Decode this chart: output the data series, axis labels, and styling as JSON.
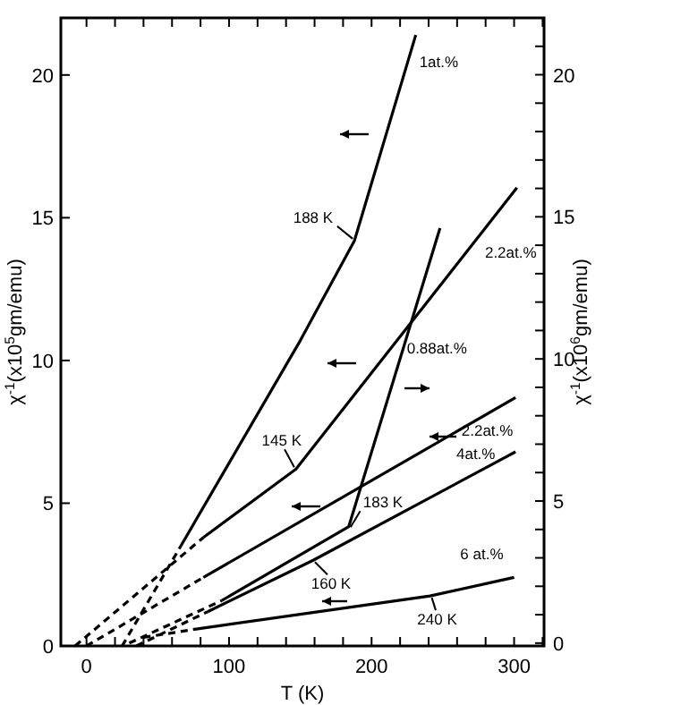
{
  "chart_data": {
    "type": "line",
    "xlabel": "T (K)",
    "ylabel": "χ$^{-1}$(x10$^{5}$gm/emu)",
    "y2label": "χ$^{-1}$(x10$^{6}$gm/emu)",
    "xlim": [
      -18,
      321
    ],
    "ylim": [
      0,
      22
    ],
    "y2lim": [
      -0.1,
      22
    ],
    "xticks": [
      0,
      {
        "value": 20,
        "label": null
      },
      {
        "value": 40,
        "label": null
      },
      {
        "value": 60,
        "label": null
      },
      {
        "value": 80,
        "label": null
      },
      100,
      {
        "value": 120,
        "label": null
      },
      {
        "value": 140,
        "label": null
      },
      {
        "value": 160,
        "label": null
      },
      {
        "value": 180,
        "label": null
      },
      200,
      {
        "value": 220,
        "label": null
      },
      {
        "value": 240,
        "label": null
      },
      {
        "value": 260,
        "label": null
      },
      {
        "value": 280,
        "label": null
      },
      300,
      {
        "value": 320,
        "label": null
      }
    ],
    "yticks": [
      0,
      5,
      10,
      15,
      20
    ],
    "y2ticks": [
      0,
      {
        "value": 1,
        "label": null
      },
      {
        "value": 2,
        "label": null
      },
      {
        "value": 3,
        "label": null
      },
      {
        "value": 4,
        "label": null
      },
      5,
      {
        "value": 6,
        "label": null
      },
      {
        "value": 7,
        "label": null
      },
      {
        "value": 8,
        "label": null
      },
      {
        "value": 9,
        "label": null
      },
      10,
      {
        "value": 11,
        "label": null
      },
      {
        "value": 12,
        "label": null
      },
      {
        "value": 13,
        "label": null
      },
      {
        "value": 14,
        "label": null
      },
      15,
      {
        "value": 16,
        "label": null
      },
      {
        "value": 17,
        "label": null
      },
      {
        "value": 18,
        "label": null
      },
      {
        "value": 19,
        "label": null
      },
      20,
      {
        "value": 21,
        "label": null
      }
    ],
    "grid": false,
    "marker": "none",
    "series": [
      {
        "color": "#000000",
        "line_style": "solid",
        "x": [
          65,
          150,
          188,
          231
        ],
        "values": [
          3.4,
          10.7,
          14.2,
          21.4
        ]
      },
      {
        "color": "#000000",
        "line_style": "dashed",
        "x": [
          25,
          65
        ],
        "values": [
          0,
          3.4
        ]
      },
      {
        "color": "#000000",
        "line_style": "solid",
        "x": [
          82,
          147,
          302
        ],
        "values": [
          3.8,
          6.2,
          16.05
        ]
      },
      {
        "color": "#000000",
        "line_style": "dashed",
        "x": [
          -8,
          82
        ],
        "values": [
          0,
          3.8
        ]
      },
      {
        "color": "#000000",
        "line_style": "solid",
        "axis": "y2",
        "x": [
          95,
          184,
          248
        ],
        "values": [
          1.5,
          4.1,
          14.6
        ]
      },
      {
        "color": "#000000",
        "line_style": "dashed",
        "axis": "y2",
        "x": [
          30,
          95
        ],
        "values": [
          0,
          1.5
        ]
      },
      {
        "color": "#000000",
        "line_style": "solid",
        "x": [
          82,
          301
        ],
        "values": [
          2.4,
          8.7
        ]
      },
      {
        "color": "#000000",
        "line_style": "dashed",
        "x": [
          0,
          82
        ],
        "values": [
          0,
          2.4
        ]
      },
      {
        "color": "#000000",
        "line_style": "solid",
        "x": [
          85,
          159,
          301
        ],
        "values": [
          1.2,
          3.0,
          6.8
        ]
      },
      {
        "color": "#000000",
        "line_style": "dashed",
        "x": [
          35,
          85
        ],
        "values": [
          0,
          1.2
        ]
      },
      {
        "color": "#000000",
        "line_style": "solid",
        "x": [
          78,
          241,
          300
        ],
        "values": [
          0.6,
          1.75,
          2.4
        ]
      },
      {
        "color": "#000000",
        "line_style": "dashed",
        "x": [
          40,
          78
        ],
        "values": [
          0.3,
          0.6
        ]
      }
    ],
    "annotations": [
      {
        "text": "1at.%",
        "x": 231,
        "y": 21.4
      },
      {
        "text": "188 K",
        "x": 188,
        "y": 14.2
      },
      {
        "text": "2.2at.%",
        "x": 272,
        "y": 14.1
      },
      {
        "text": "145 K",
        "x": 147,
        "y": 6.2
      },
      {
        "text": "0.88at.%",
        "x": 221,
        "y": 10.5
      },
      {
        "text": "183 K",
        "x": 184,
        "y": 4.1
      },
      {
        "text": "2.2at.%",
        "x": 288,
        "y": 8.3
      },
      {
        "text": "4at.%",
        "x": 283,
        "y": 6.3
      },
      {
        "text": "160 K",
        "x": 159,
        "y": 3.0
      },
      {
        "text": "6 at.%",
        "x": 300,
        "y": 2.4
      },
      {
        "text": "240 K",
        "x": 241,
        "y": 1.75
      }
    ]
  }
}
